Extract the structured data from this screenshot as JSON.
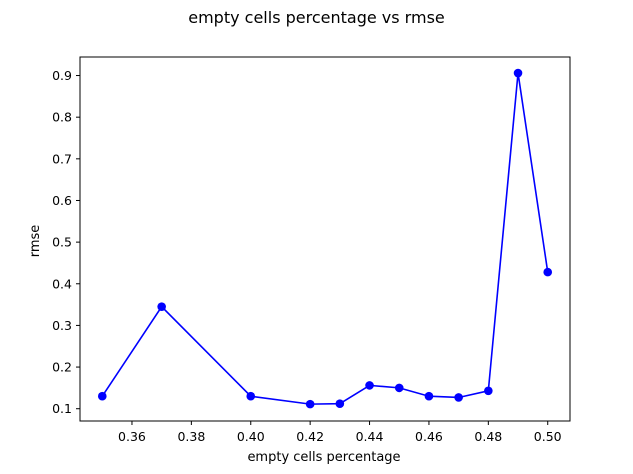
{
  "chart_data": {
    "type": "line",
    "title": "empty cells percentage vs rmse",
    "xlabel": "empty cells percentage",
    "ylabel": "rmse",
    "xlim": [
      0.3425,
      0.5075
    ],
    "ylim": [
      0.0705,
      0.9445
    ],
    "xticks": [
      0.36,
      0.38,
      0.4,
      0.42,
      0.44,
      0.46,
      0.48,
      0.5
    ],
    "xtick_labels": [
      "0.36",
      "0.38",
      "0.40",
      "0.42",
      "0.44",
      "0.46",
      "0.48",
      "0.50"
    ],
    "yticks": [
      0.1,
      0.2,
      0.3,
      0.4,
      0.5,
      0.6,
      0.7,
      0.8,
      0.9
    ],
    "ytick_labels": [
      "0.1",
      "0.2",
      "0.3",
      "0.4",
      "0.5",
      "0.6",
      "0.7",
      "0.8",
      "0.9"
    ],
    "grid": false,
    "series": [
      {
        "color": "#0000ff",
        "marker": "circle",
        "x": [
          0.35,
          0.37,
          0.4,
          0.42,
          0.43,
          0.44,
          0.45,
          0.46,
          0.47,
          0.48,
          0.49,
          0.5
        ],
        "y": [
          0.13,
          0.345,
          0.13,
          0.111,
          0.112,
          0.156,
          0.15,
          0.13,
          0.127,
          0.143,
          0.906,
          0.428
        ]
      }
    ]
  }
}
